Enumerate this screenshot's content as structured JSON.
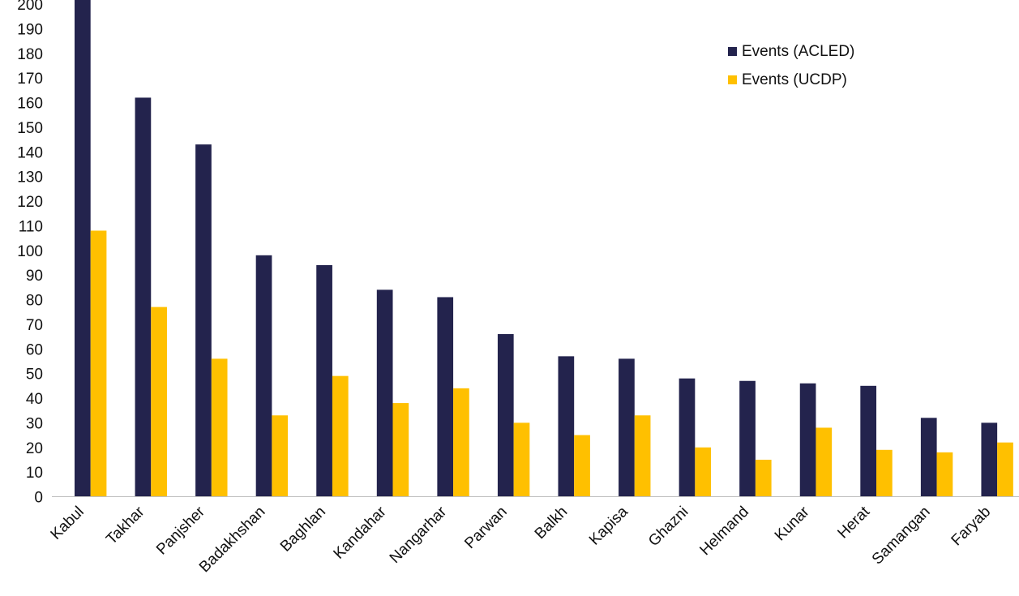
{
  "chart_data": {
    "type": "bar",
    "categories": [
      "Kabul",
      "Takhar",
      "Panjsher",
      "Badakhshan",
      "Baghlan",
      "Kandahar",
      "Nangarhar",
      "Parwan",
      "Balkh",
      "Kapisa",
      "Ghazni",
      "Helmand",
      "Kunar",
      "Herat",
      "Samangan",
      "Faryab"
    ],
    "series": [
      {
        "name": "Events (ACLED)",
        "color": "#23234d",
        "values": [
          204,
          162,
          143,
          98,
          94,
          84,
          81,
          66,
          57,
          56,
          48,
          47,
          46,
          45,
          32,
          30
        ]
      },
      {
        "name": "Events (UCDP)",
        "color": "#ffc000",
        "values": [
          108,
          77,
          56,
          33,
          49,
          38,
          44,
          30,
          25,
          33,
          20,
          15,
          28,
          19,
          18,
          22
        ]
      }
    ],
    "title": "",
    "xlabel": "",
    "ylabel": "",
    "ylim": [
      0,
      200
    ],
    "yticks": [
      "0",
      "10",
      "20",
      "30",
      "40",
      "50",
      "60",
      "70",
      "80",
      "90",
      "100",
      "110",
      "120",
      "130",
      "140",
      "150",
      "160",
      "170",
      "180",
      "190",
      "200"
    ],
    "grid": false,
    "legend_position": "top-right"
  }
}
